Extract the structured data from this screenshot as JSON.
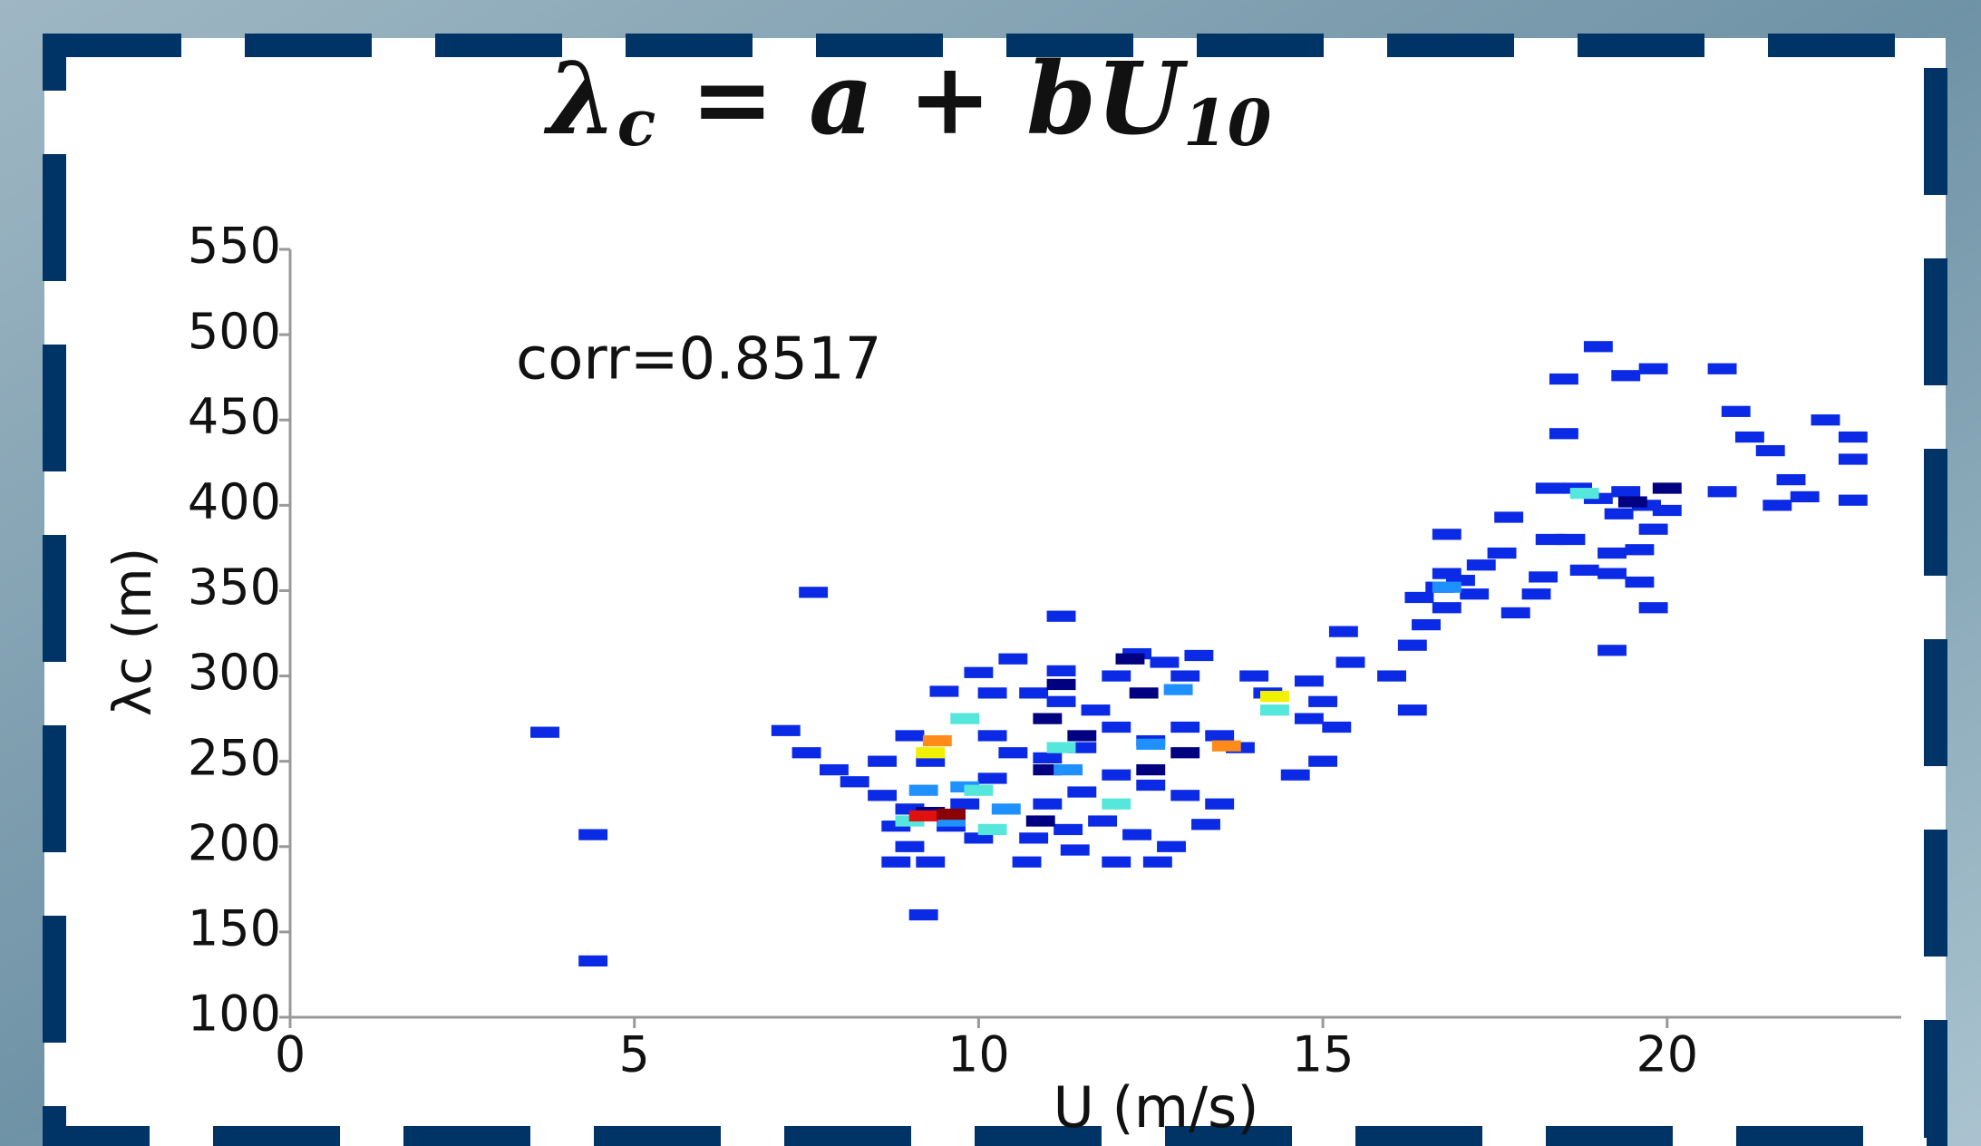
{
  "chart_data": {
    "type": "scatter",
    "title": [
      {
        "text": "λ"
      },
      {
        "text": "c",
        "sub": true
      },
      {
        "text": " = a + bU"
      },
      {
        "text": "10",
        "sub": true
      }
    ],
    "annotation": "corr=0.8517",
    "xlabel": "U (m/s)",
    "ylabel": "λc (m)",
    "xlim": [
      0,
      23.4
    ],
    "ylim": [
      100,
      550
    ],
    "xticks": [
      0,
      5,
      10,
      15,
      20
    ],
    "yticks": [
      100,
      150,
      200,
      250,
      300,
      350,
      400,
      450,
      500,
      550
    ],
    "grid": false,
    "series": [
      {
        "color": "#0a2ae6",
        "x": [
          3.7,
          4.4,
          4.4,
          7.6,
          7.2,
          7.5,
          7.9,
          8.2,
          8.6,
          9.0,
          8.8,
          9.0,
          8.8,
          9.3,
          9.2,
          9.6,
          9.8,
          10.2,
          10.5,
          10.2,
          9.0,
          8.6,
          9.3,
          10.0,
          10.8,
          10.7,
          11.4,
          11.3,
          11.8,
          12.3,
          12.8,
          12.6,
          12.0,
          11.0,
          11.5,
          12.0,
          12.5,
          13.0,
          13.5,
          13.3,
          11.0,
          11.5,
          12.5,
          13.0,
          13.5,
          13.8,
          12.0,
          11.7,
          11.2,
          10.8,
          10.0,
          10.5,
          11.2,
          12.0,
          12.7,
          13.0,
          13.2,
          12.3,
          11.2,
          10.2,
          9.5,
          14.0,
          14.2,
          14.8,
          15.2,
          15.0,
          14.8,
          15.3,
          15.4,
          14.6,
          15.0,
          16.0,
          16.3,
          16.3,
          16.5,
          16.4,
          16.7,
          17.0,
          17.2,
          16.8,
          17.3,
          16.8,
          17.7,
          17.6,
          18.2,
          17.8,
          18.1,
          18.3,
          18.7,
          19.0,
          19.4,
          19.7,
          19.3,
          20.0,
          19.8,
          19.6,
          19.2,
          18.8,
          19.2,
          19.6,
          19.8,
          19.2,
          18.5,
          18.5,
          19.0,
          19.4,
          19.8,
          20.8,
          21.0,
          21.5,
          21.6,
          20.8,
          22.0,
          21.8,
          22.3,
          22.7,
          22.7,
          22.7,
          21.2,
          18.3,
          18.6,
          16.8
        ],
        "values": [
          267,
          207,
          133,
          349,
          268,
          255,
          245,
          238,
          230,
          222,
          212,
          200,
          191,
          191,
          160,
          212,
          225,
          240,
          255,
          265,
          265,
          250,
          250,
          205,
          205,
          191,
          198,
          210,
          215,
          207,
          200,
          191,
          191,
          225,
          232,
          242,
          236,
          230,
          225,
          213,
          252,
          258,
          262,
          270,
          265,
          258,
          270,
          280,
          285,
          290,
          302,
          310,
          303,
          300,
          308,
          300,
          312,
          313,
          335,
          290,
          291,
          300,
          290,
          275,
          270,
          285,
          297,
          326,
          308,
          242,
          250,
          300,
          318,
          280,
          330,
          346,
          352,
          356,
          348,
          360,
          365,
          383,
          393,
          372,
          358,
          337,
          348,
          410,
          410,
          404,
          408,
          400,
          395,
          397,
          386,
          374,
          372,
          362,
          360,
          355,
          340,
          315,
          442,
          474,
          493,
          476,
          480,
          480,
          455,
          432,
          400,
          408,
          405,
          415,
          450,
          440,
          403,
          427,
          440,
          380,
          380,
          340
        ]
      },
      {
        "color": "#000080",
        "x": [
          9.3,
          11.2,
          12.4,
          11.5,
          12.5,
          11.0,
          12.2,
          19.5,
          20.0,
          13.0,
          11.0,
          10.9
        ],
        "values": [
          220,
          295,
          290,
          265,
          245,
          245,
          310,
          402,
          410,
          255,
          275,
          215
        ]
      },
      {
        "color": "#1e90ff",
        "x": [
          9.8,
          9.2,
          10.4,
          11.3,
          12.5,
          12.9,
          9.6,
          16.8
        ],
        "values": [
          235,
          233,
          222,
          245,
          260,
          292,
          215,
          352
        ]
      },
      {
        "color": "#55e6dc",
        "x": [
          9.8,
          9.0,
          10.0,
          11.2,
          12.0,
          14.3,
          18.8,
          10.2
        ],
        "values": [
          275,
          215,
          233,
          258,
          225,
          280,
          407,
          210
        ]
      },
      {
        "color": "#f0f000",
        "x": [
          9.3,
          14.3
        ],
        "values": [
          255,
          288
        ]
      },
      {
        "color": "#ff8c1a",
        "x": [
          9.4,
          13.6
        ],
        "values": [
          262,
          259
        ]
      },
      {
        "color": "#e01010",
        "x": [
          9.2
        ],
        "values": [
          218
        ]
      },
      {
        "color": "#8b0000",
        "x": [
          9.6
        ],
        "values": [
          219
        ]
      }
    ]
  }
}
